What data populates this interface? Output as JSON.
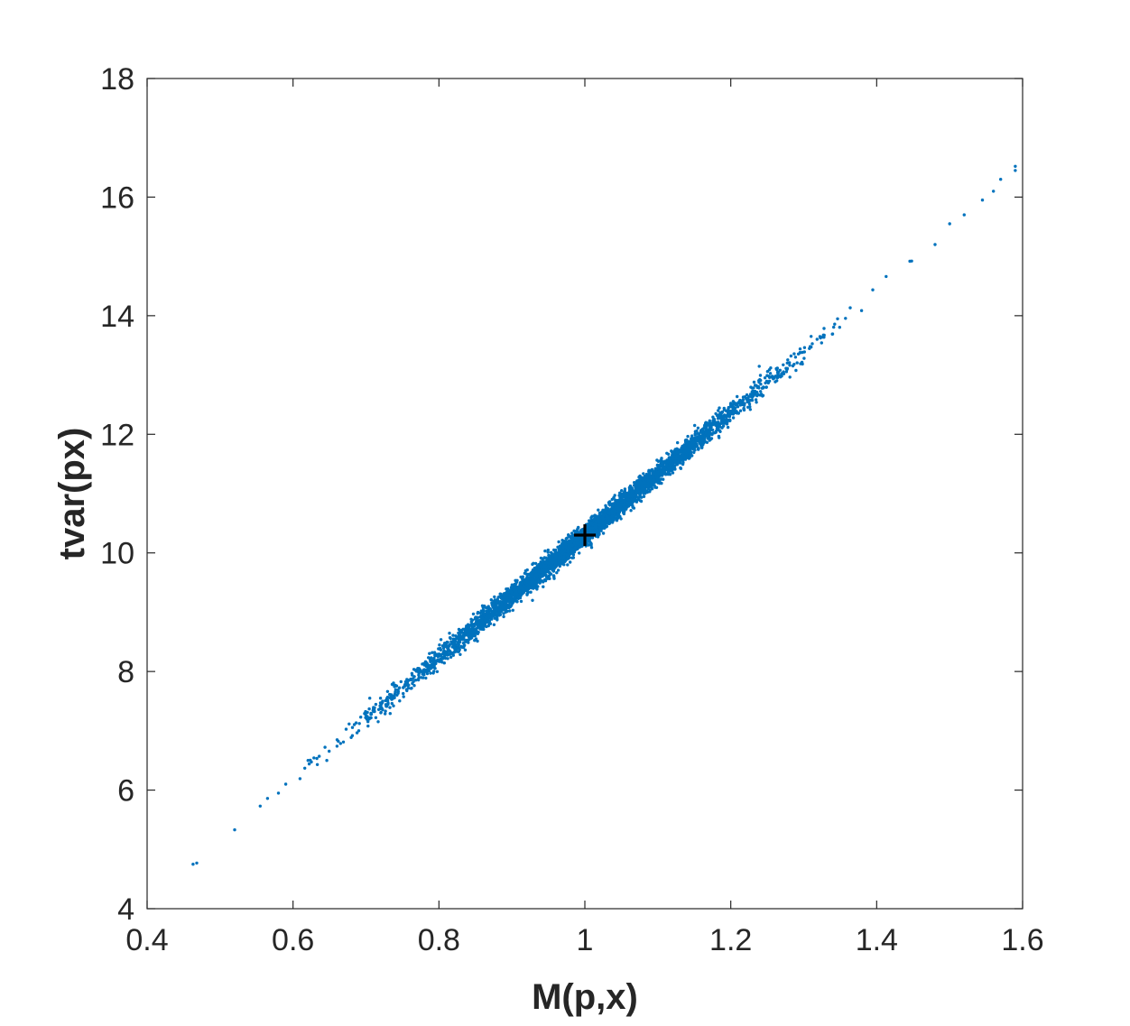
{
  "chart_data": {
    "type": "scatter",
    "title": "",
    "xlabel": "M(p,x)",
    "ylabel": "tvar(px)",
    "xlim": [
      0.4,
      1.6
    ],
    "ylim": [
      4,
      18
    ],
    "xticks": [
      0.4,
      0.6,
      0.8,
      1.0,
      1.2,
      1.4,
      1.6
    ],
    "xtick_labels": [
      "0.4",
      "0.6",
      "0.8",
      "1",
      "1.2",
      "1.4",
      "1.6"
    ],
    "yticks": [
      4,
      6,
      8,
      10,
      12,
      14,
      16,
      18
    ],
    "ytick_labels": [
      "4",
      "6",
      "8",
      "10",
      "12",
      "14",
      "16",
      "18"
    ],
    "grid": false,
    "box": true,
    "series": [
      {
        "marker": "dot",
        "color": "#0072BD",
        "relation": "tvar ≈ 10.3 · M, with small scatter",
        "x_range": [
          0.46,
          1.59
        ],
        "outliers": [
          {
            "x": 0.463,
            "y": 4.75
          },
          {
            "x": 0.468,
            "y": 4.77
          },
          {
            "x": 0.52,
            "y": 5.33
          },
          {
            "x": 0.555,
            "y": 5.73
          },
          {
            "x": 0.565,
            "y": 5.86
          },
          {
            "x": 0.58,
            "y": 5.95
          },
          {
            "x": 0.59,
            "y": 6.1
          },
          {
            "x": 1.48,
            "y": 15.2
          },
          {
            "x": 1.5,
            "y": 15.55
          },
          {
            "x": 1.52,
            "y": 15.7
          },
          {
            "x": 1.545,
            "y": 15.95
          },
          {
            "x": 1.56,
            "y": 16.1
          },
          {
            "x": 1.57,
            "y": 16.3
          },
          {
            "x": 1.59,
            "y": 16.45
          },
          {
            "x": 1.59,
            "y": 16.52
          }
        ]
      },
      {
        "marker": "plus",
        "color": "#000000",
        "points": [
          {
            "x": 1.0,
            "y": 10.3
          }
        ]
      }
    ]
  }
}
